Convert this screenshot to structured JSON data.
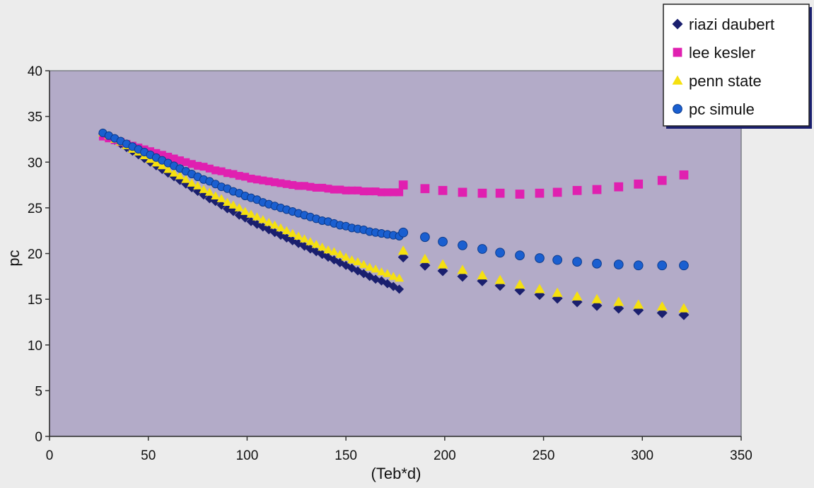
{
  "chart_data": {
    "type": "scatter",
    "title": "",
    "xlabel": "(Teb*d)",
    "ylabel": "pc",
    "xlim": [
      0,
      350
    ],
    "ylim": [
      0,
      40
    ],
    "x_ticks": [
      0,
      50,
      100,
      150,
      200,
      250,
      300,
      350
    ],
    "y_ticks": [
      0,
      5,
      10,
      15,
      20,
      25,
      30,
      35,
      40
    ],
    "grid": false,
    "legend_position": "top-right",
    "plot_background": "#b3abc8",
    "series": [
      {
        "name": "riazi daubert",
        "marker": "diamond",
        "color": "#1a1f6e",
        "points": [
          [
            27,
            33.1
          ],
          [
            30,
            32.8
          ],
          [
            33,
            32.4
          ],
          [
            36,
            32.0
          ],
          [
            39,
            31.6
          ],
          [
            42,
            31.2
          ],
          [
            45,
            30.8
          ],
          [
            48,
            30.4
          ],
          [
            51,
            30.0
          ],
          [
            54,
            29.6
          ],
          [
            57,
            29.2
          ],
          [
            60,
            28.8
          ],
          [
            63,
            28.4
          ],
          [
            66,
            28.0
          ],
          [
            69,
            27.6
          ],
          [
            72,
            27.2
          ],
          [
            75,
            26.8
          ],
          [
            78,
            26.4
          ],
          [
            81,
            26.0
          ],
          [
            84,
            25.7
          ],
          [
            87,
            25.3
          ],
          [
            90,
            24.9
          ],
          [
            93,
            24.6
          ],
          [
            96,
            24.2
          ],
          [
            99,
            23.9
          ],
          [
            102,
            23.5
          ],
          [
            105,
            23.2
          ],
          [
            108,
            22.9
          ],
          [
            111,
            22.6
          ],
          [
            114,
            22.3
          ],
          [
            117,
            22.0
          ],
          [
            120,
            21.7
          ],
          [
            123,
            21.4
          ],
          [
            126,
            21.1
          ],
          [
            129,
            20.8
          ],
          [
            132,
            20.5
          ],
          [
            135,
            20.2
          ],
          [
            138,
            19.9
          ],
          [
            141,
            19.6
          ],
          [
            144,
            19.3
          ],
          [
            147,
            19.0
          ],
          [
            150,
            18.7
          ],
          [
            153,
            18.4
          ],
          [
            156,
            18.1
          ],
          [
            159,
            17.8
          ],
          [
            162,
            17.5
          ],
          [
            165,
            17.2
          ],
          [
            168,
            17.0
          ],
          [
            171,
            16.7
          ],
          [
            174,
            16.4
          ],
          [
            177,
            16.1
          ],
          [
            179,
            19.6
          ],
          [
            190,
            18.7
          ],
          [
            199,
            18.1
          ],
          [
            209,
            17.5
          ],
          [
            219,
            17.0
          ],
          [
            228,
            16.5
          ],
          [
            238,
            16.0
          ],
          [
            248,
            15.5
          ],
          [
            257,
            15.1
          ],
          [
            267,
            14.7
          ],
          [
            277,
            14.3
          ],
          [
            288,
            14.0
          ],
          [
            298,
            13.8
          ],
          [
            310,
            13.5
          ],
          [
            321,
            13.3
          ]
        ]
      },
      {
        "name": "lee kesler",
        "marker": "square",
        "color": "#e020b0",
        "points": [
          [
            27,
            32.8
          ],
          [
            30,
            32.6
          ],
          [
            33,
            32.4
          ],
          [
            36,
            32.2
          ],
          [
            39,
            32.0
          ],
          [
            42,
            31.8
          ],
          [
            45,
            31.6
          ],
          [
            48,
            31.4
          ],
          [
            51,
            31.2
          ],
          [
            54,
            31.0
          ],
          [
            57,
            30.8
          ],
          [
            60,
            30.6
          ],
          [
            63,
            30.4
          ],
          [
            66,
            30.2
          ],
          [
            69,
            30.0
          ],
          [
            72,
            29.8
          ],
          [
            75,
            29.6
          ],
          [
            78,
            29.5
          ],
          [
            81,
            29.3
          ],
          [
            84,
            29.1
          ],
          [
            87,
            29.0
          ],
          [
            90,
            28.8
          ],
          [
            93,
            28.7
          ],
          [
            96,
            28.5
          ],
          [
            99,
            28.4
          ],
          [
            102,
            28.2
          ],
          [
            105,
            28.1
          ],
          [
            108,
            28.0
          ],
          [
            111,
            27.9
          ],
          [
            114,
            27.8
          ],
          [
            117,
            27.7
          ],
          [
            120,
            27.6
          ],
          [
            123,
            27.5
          ],
          [
            126,
            27.4
          ],
          [
            129,
            27.4
          ],
          [
            132,
            27.3
          ],
          [
            135,
            27.2
          ],
          [
            138,
            27.2
          ],
          [
            141,
            27.1
          ],
          [
            144,
            27.0
          ],
          [
            147,
            27.0
          ],
          [
            150,
            26.9
          ],
          [
            153,
            26.9
          ],
          [
            156,
            26.9
          ],
          [
            159,
            26.8
          ],
          [
            162,
            26.8
          ],
          [
            165,
            26.8
          ],
          [
            168,
            26.7
          ],
          [
            171,
            26.7
          ],
          [
            174,
            26.7
          ],
          [
            177,
            26.7
          ],
          [
            179,
            27.5
          ],
          [
            190,
            27.1
          ],
          [
            199,
            26.9
          ],
          [
            209,
            26.7
          ],
          [
            219,
            26.6
          ],
          [
            228,
            26.6
          ],
          [
            238,
            26.5
          ],
          [
            248,
            26.6
          ],
          [
            257,
            26.7
          ],
          [
            267,
            26.9
          ],
          [
            277,
            27.0
          ],
          [
            288,
            27.3
          ],
          [
            298,
            27.6
          ],
          [
            310,
            28.0
          ],
          [
            321,
            28.6
          ]
        ]
      },
      {
        "name": "penn state",
        "marker": "triangle",
        "color": "#f5e010",
        "points": [
          [
            27,
            33.2
          ],
          [
            30,
            32.9
          ],
          [
            33,
            32.5
          ],
          [
            36,
            32.2
          ],
          [
            39,
            31.8
          ],
          [
            42,
            31.4
          ],
          [
            45,
            31.1
          ],
          [
            48,
            30.7
          ],
          [
            51,
            30.3
          ],
          [
            54,
            29.9
          ],
          [
            57,
            29.6
          ],
          [
            60,
            29.2
          ],
          [
            63,
            28.8
          ],
          [
            66,
            28.5
          ],
          [
            69,
            28.1
          ],
          [
            72,
            27.7
          ],
          [
            75,
            27.4
          ],
          [
            78,
            27.0
          ],
          [
            81,
            26.7
          ],
          [
            84,
            26.3
          ],
          [
            87,
            26.0
          ],
          [
            90,
            25.6
          ],
          [
            93,
            25.3
          ],
          [
            96,
            25.0
          ],
          [
            99,
            24.6
          ],
          [
            102,
            24.3
          ],
          [
            105,
            24.0
          ],
          [
            108,
            23.7
          ],
          [
            111,
            23.4
          ],
          [
            114,
            23.1
          ],
          [
            117,
            22.8
          ],
          [
            120,
            22.5
          ],
          [
            123,
            22.2
          ],
          [
            126,
            21.9
          ],
          [
            129,
            21.6
          ],
          [
            132,
            21.3
          ],
          [
            135,
            21.0
          ],
          [
            138,
            20.7
          ],
          [
            141,
            20.4
          ],
          [
            144,
            20.2
          ],
          [
            147,
            19.9
          ],
          [
            150,
            19.6
          ],
          [
            153,
            19.3
          ],
          [
            156,
            19.1
          ],
          [
            159,
            18.8
          ],
          [
            162,
            18.5
          ],
          [
            165,
            18.3
          ],
          [
            168,
            18.0
          ],
          [
            171,
            17.8
          ],
          [
            174,
            17.5
          ],
          [
            177,
            17.3
          ],
          [
            179,
            20.3
          ],
          [
            190,
            19.4
          ],
          [
            199,
            18.8
          ],
          [
            209,
            18.2
          ],
          [
            219,
            17.6
          ],
          [
            228,
            17.1
          ],
          [
            238,
            16.6
          ],
          [
            248,
            16.1
          ],
          [
            257,
            15.7
          ],
          [
            267,
            15.3
          ],
          [
            277,
            15.0
          ],
          [
            288,
            14.7
          ],
          [
            298,
            14.4
          ],
          [
            310,
            14.2
          ],
          [
            321,
            14.0
          ]
        ]
      },
      {
        "name": "pc simule",
        "marker": "circle",
        "color": "#1a5fd0",
        "points": [
          [
            27,
            33.2
          ],
          [
            30,
            32.9
          ],
          [
            33,
            32.6
          ],
          [
            36,
            32.3
          ],
          [
            39,
            32.0
          ],
          [
            42,
            31.7
          ],
          [
            45,
            31.4
          ],
          [
            48,
            31.1
          ],
          [
            51,
            30.8
          ],
          [
            54,
            30.5
          ],
          [
            57,
            30.2
          ],
          [
            60,
            29.9
          ],
          [
            63,
            29.6
          ],
          [
            66,
            29.3
          ],
          [
            69,
            29.0
          ],
          [
            72,
            28.7
          ],
          [
            75,
            28.4
          ],
          [
            78,
            28.1
          ],
          [
            81,
            27.9
          ],
          [
            84,
            27.6
          ],
          [
            87,
            27.3
          ],
          [
            90,
            27.1
          ],
          [
            93,
            26.8
          ],
          [
            96,
            26.6
          ],
          [
            99,
            26.3
          ],
          [
            102,
            26.1
          ],
          [
            105,
            25.9
          ],
          [
            108,
            25.6
          ],
          [
            111,
            25.4
          ],
          [
            114,
            25.2
          ],
          [
            117,
            25.0
          ],
          [
            120,
            24.8
          ],
          [
            123,
            24.6
          ],
          [
            126,
            24.4
          ],
          [
            129,
            24.2
          ],
          [
            132,
            24.0
          ],
          [
            135,
            23.8
          ],
          [
            138,
            23.6
          ],
          [
            141,
            23.5
          ],
          [
            144,
            23.3
          ],
          [
            147,
            23.1
          ],
          [
            150,
            23.0
          ],
          [
            153,
            22.8
          ],
          [
            156,
            22.7
          ],
          [
            159,
            22.6
          ],
          [
            162,
            22.4
          ],
          [
            165,
            22.3
          ],
          [
            168,
            22.2
          ],
          [
            171,
            22.1
          ],
          [
            174,
            22.0
          ],
          [
            177,
            21.9
          ],
          [
            179,
            22.3
          ],
          [
            190,
            21.8
          ],
          [
            199,
            21.3
          ],
          [
            209,
            20.9
          ],
          [
            219,
            20.5
          ],
          [
            228,
            20.1
          ],
          [
            238,
            19.8
          ],
          [
            248,
            19.5
          ],
          [
            257,
            19.3
          ],
          [
            267,
            19.1
          ],
          [
            277,
            18.9
          ],
          [
            288,
            18.8
          ],
          [
            298,
            18.7
          ],
          [
            310,
            18.7
          ],
          [
            321,
            18.7
          ]
        ]
      }
    ]
  }
}
